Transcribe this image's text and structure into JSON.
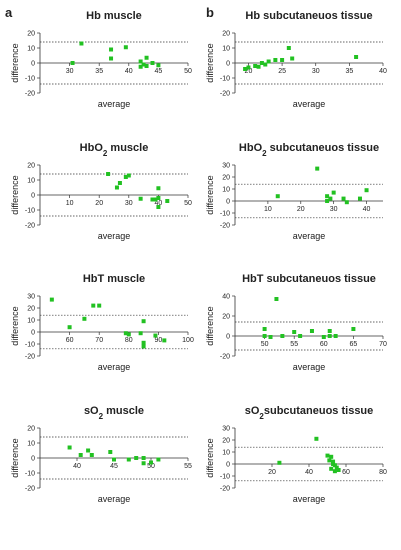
{
  "panel_letters": [
    "a",
    "b"
  ],
  "chart_data": [
    {
      "type": "scatter",
      "title": "Hb muscle",
      "title_sub": "",
      "xlabel": "average",
      "ylabel": "difference",
      "xlim": [
        25,
        50
      ],
      "ylim": [
        -20,
        20
      ],
      "xticks": [
        30,
        35,
        40,
        45,
        50
      ],
      "yticks": [
        -20,
        -10,
        0,
        10,
        20
      ],
      "limits": [
        14,
        -14
      ],
      "color": "#22c122",
      "points": [
        [
          32,
          13
        ],
        [
          37,
          9
        ],
        [
          39.5,
          10.5
        ],
        [
          37,
          3
        ],
        [
          43,
          3.5
        ],
        [
          44,
          0
        ],
        [
          42,
          1
        ],
        [
          42.5,
          -1
        ],
        [
          43,
          -2
        ],
        [
          45,
          -1.5
        ],
        [
          42,
          -2.5
        ],
        [
          30.5,
          0
        ]
      ]
    },
    {
      "type": "scatter",
      "title": "HbO",
      "title_sub": "2",
      "title_suffix": " muscle",
      "xlabel": "average",
      "ylabel": "difference",
      "xlim": [
        0,
        50
      ],
      "ylim": [
        -20,
        20
      ],
      "xticks": [
        10,
        20,
        30,
        40,
        50
      ],
      "yticks": [
        -20,
        -10,
        0,
        10,
        20
      ],
      "limits": [
        14,
        -14
      ],
      "color": "#22c122",
      "points": [
        [
          23,
          14
        ],
        [
          29,
          12
        ],
        [
          30,
          13
        ],
        [
          27,
          8
        ],
        [
          26,
          5
        ],
        [
          34,
          -2.5
        ],
        [
          40,
          4.5
        ],
        [
          38,
          -3
        ],
        [
          39,
          -3
        ],
        [
          40,
          -2
        ],
        [
          40,
          -8
        ],
        [
          43,
          -4
        ]
      ]
    },
    {
      "type": "scatter",
      "title": "HbT muscle",
      "title_sub": "",
      "xlabel": "average",
      "ylabel": "difference",
      "xlim": [
        50,
        100
      ],
      "ylim": [
        -20,
        30
      ],
      "xticks": [
        60,
        70,
        80,
        90,
        100
      ],
      "yticks": [
        -20,
        -10,
        0,
        10,
        20,
        30
      ],
      "limits": [
        14,
        -14
      ],
      "color": "#22c122",
      "points": [
        [
          54,
          27
        ],
        [
          68,
          22
        ],
        [
          70,
          22
        ],
        [
          65,
          11
        ],
        [
          60,
          4
        ],
        [
          85,
          9
        ],
        [
          79,
          -1
        ],
        [
          80,
          -2
        ],
        [
          84,
          -1
        ],
        [
          85,
          -9
        ],
        [
          85,
          -12
        ],
        [
          89,
          -3
        ],
        [
          92,
          -7
        ]
      ]
    },
    {
      "type": "scatter",
      "title": "sO",
      "title_sub": "2",
      "title_suffix": " muscle",
      "xlabel": "average",
      "ylabel": "difference",
      "xlim": [
        35,
        55
      ],
      "ylim": [
        -20,
        20
      ],
      "xticks": [
        40,
        45,
        50,
        55
      ],
      "yticks": [
        -20,
        -10,
        0,
        10,
        20
      ],
      "limits": [
        14,
        -14
      ],
      "color": "#22c122",
      "points": [
        [
          39,
          7
        ],
        [
          41.5,
          5
        ],
        [
          40.5,
          2
        ],
        [
          42,
          2
        ],
        [
          44.5,
          4
        ],
        [
          45,
          -1
        ],
        [
          47,
          -1
        ],
        [
          48,
          0
        ],
        [
          49,
          0
        ],
        [
          49,
          -3.5
        ],
        [
          50,
          -3
        ],
        [
          51,
          -1
        ]
      ]
    },
    {
      "type": "scatter",
      "title": "Hb subcutaneuos tissue",
      "title_sub": "",
      "xlabel": "average",
      "ylabel": "difference",
      "xlim": [
        18,
        40
      ],
      "ylim": [
        -20,
        20
      ],
      "xticks": [
        20,
        25,
        30,
        35,
        40
      ],
      "yticks": [
        -20,
        -10,
        0,
        10,
        20
      ],
      "limits": [
        14,
        -14
      ],
      "color": "#22c122",
      "points": [
        [
          21,
          -2
        ],
        [
          22,
          0
        ],
        [
          23,
          1
        ],
        [
          24,
          2
        ],
        [
          25,
          2
        ],
        [
          26,
          10
        ],
        [
          26.5,
          3
        ],
        [
          20,
          -3
        ],
        [
          21.5,
          -2.5
        ],
        [
          22.5,
          -1
        ],
        [
          36,
          4
        ],
        [
          19.5,
          -4
        ]
      ]
    },
    {
      "type": "scatter",
      "title": "HbO",
      "title_sub": "2",
      "title_suffix": " subcutaneuos tissue",
      "xlabel": "average",
      "ylabel": "difference",
      "xlim": [
        0,
        45
      ],
      "ylim": [
        -20,
        30
      ],
      "xticks": [
        10,
        20,
        30,
        40
      ],
      "yticks": [
        -20,
        -10,
        0,
        10,
        20,
        30
      ],
      "limits": [
        14,
        -14
      ],
      "color": "#22c122",
      "points": [
        [
          25,
          27
        ],
        [
          13,
          4
        ],
        [
          28,
          4
        ],
        [
          29,
          2
        ],
        [
          30,
          7
        ],
        [
          33,
          2
        ],
        [
          38,
          2
        ],
        [
          40,
          9
        ],
        [
          34,
          -1
        ],
        [
          28,
          0
        ]
      ]
    },
    {
      "type": "scatter",
      "title": "HbT subcutaneuos tissue",
      "title_sub": "",
      "xlabel": "average",
      "ylabel": "difference",
      "xlim": [
        45,
        70
      ],
      "ylim": [
        -20,
        40
      ],
      "xticks": [
        50,
        55,
        60,
        65,
        70
      ],
      "yticks": [
        -20,
        0,
        20,
        40
      ],
      "limits": [
        14,
        -14
      ],
      "color": "#22c122",
      "points": [
        [
          52,
          37
        ],
        [
          50,
          7
        ],
        [
          55,
          4
        ],
        [
          58,
          5
        ],
        [
          61,
          5
        ],
        [
          65,
          7
        ],
        [
          50,
          0
        ],
        [
          51,
          -1
        ],
        [
          53,
          0
        ],
        [
          56,
          0
        ],
        [
          61,
          0
        ],
        [
          62,
          0
        ],
        [
          60,
          -1
        ]
      ]
    },
    {
      "type": "scatter",
      "title": "sO",
      "title_sub": "2",
      "title_suffix": "subcutaneuos tissue",
      "xlabel": "average",
      "ylabel": "difference",
      "xlim": [
        0,
        80
      ],
      "ylim": [
        -20,
        30
      ],
      "xticks": [
        20,
        40,
        60,
        80
      ],
      "yticks": [
        -20,
        -10,
        0,
        10,
        20,
        30
      ],
      "limits": [
        14,
        -14
      ],
      "color": "#22c122",
      "points": [
        [
          44,
          21
        ],
        [
          50,
          7
        ],
        [
          52,
          6
        ],
        [
          51,
          3
        ],
        [
          53,
          2
        ],
        [
          53,
          0
        ],
        [
          54,
          -1
        ],
        [
          55,
          -3
        ],
        [
          52,
          -4
        ],
        [
          56,
          -5
        ],
        [
          54,
          -6
        ],
        [
          24,
          1
        ]
      ]
    }
  ]
}
